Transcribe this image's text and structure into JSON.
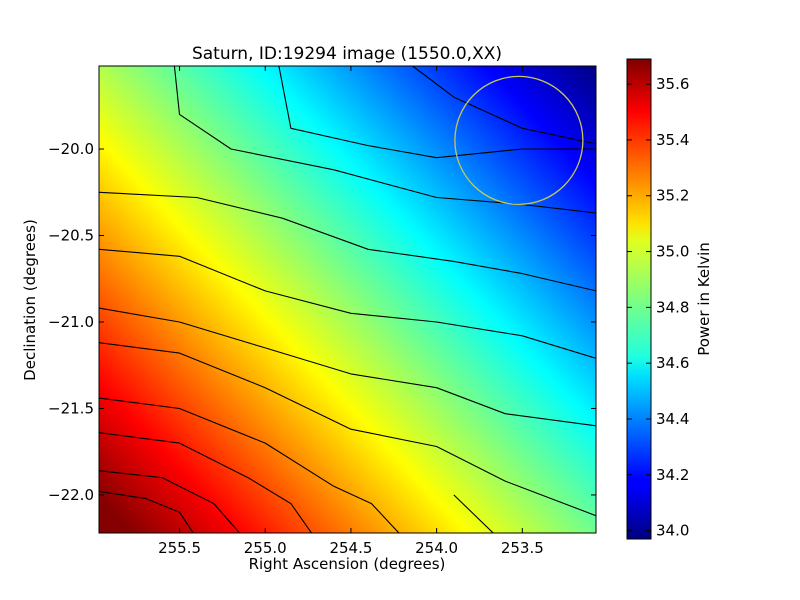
{
  "chart_data": {
    "type": "heatmap",
    "title": "Saturn, ID:19294 image (1550.0,XX)",
    "xlabel": "Right Ascension (degrees)",
    "ylabel": "Declination (degrees)",
    "colorbar_label": "Power in Kelvin",
    "colormap": "jet",
    "xlim": [
      255.97,
      253.07
    ],
    "ylim": [
      -22.22,
      -19.52
    ],
    "x_inverted": true,
    "xticks": [
      255.5,
      255.0,
      254.5,
      254.0,
      253.5
    ],
    "xtick_labels": [
      "255.5",
      "255.0",
      "254.5",
      "254.0",
      "253.5"
    ],
    "yticks": [
      -20.0,
      -20.5,
      -21.0,
      -21.5,
      -22.0
    ],
    "ytick_labels": [
      "−20.0",
      "−20.5",
      "−21.0",
      "−21.5",
      "−22.0"
    ],
    "colorbar_range": [
      33.97,
      35.69
    ],
    "colorbar_ticks": [
      34.0,
      34.2,
      34.4,
      34.6,
      34.8,
      35.0,
      35.2,
      35.4,
      35.6
    ],
    "colorbar_tick_labels": [
      "34.0",
      "34.2",
      "34.4",
      "34.6",
      "34.8",
      "35.0",
      "35.2",
      "35.4",
      "35.6"
    ],
    "grid": false,
    "field_model": {
      "max_value": 35.68,
      "max_ra": 255.85,
      "max_dec": -22.15,
      "min_value": 33.98,
      "min_ra": 253.07,
      "min_dec": -19.52
    },
    "contour_lines": [
      {
        "points": [
          [
            255.53,
            -19.52
          ],
          [
            255.5,
            -19.8
          ],
          [
            255.2,
            -20.0
          ],
          [
            254.6,
            -20.12
          ],
          [
            254.0,
            -20.28
          ],
          [
            253.5,
            -20.32
          ],
          [
            253.07,
            -20.37
          ]
        ]
      },
      {
        "points": [
          [
            254.92,
            -19.52
          ],
          [
            254.85,
            -19.88
          ],
          [
            254.4,
            -19.98
          ],
          [
            254.0,
            -20.05
          ],
          [
            253.5,
            -20.0
          ],
          [
            253.07,
            -20.0
          ]
        ]
      },
      {
        "points": [
          [
            254.14,
            -19.52
          ],
          [
            253.9,
            -19.7
          ],
          [
            253.5,
            -19.88
          ],
          [
            253.07,
            -19.97
          ]
        ]
      },
      {
        "points": [
          [
            255.97,
            -20.25
          ],
          [
            255.4,
            -20.28
          ],
          [
            254.9,
            -20.4
          ],
          [
            254.4,
            -20.58
          ],
          [
            253.9,
            -20.65
          ],
          [
            253.5,
            -20.72
          ],
          [
            253.07,
            -20.82
          ]
        ]
      },
      {
        "points": [
          [
            255.97,
            -20.58
          ],
          [
            255.5,
            -20.62
          ],
          [
            255.0,
            -20.82
          ],
          [
            254.5,
            -20.95
          ],
          [
            254.0,
            -21.0
          ],
          [
            253.5,
            -21.08
          ],
          [
            253.07,
            -21.21
          ]
        ]
      },
      {
        "points": [
          [
            255.97,
            -20.92
          ],
          [
            255.5,
            -21.0
          ],
          [
            255.0,
            -21.15
          ],
          [
            254.5,
            -21.3
          ],
          [
            254.0,
            -21.38
          ],
          [
            253.6,
            -21.53
          ],
          [
            253.07,
            -21.6
          ]
        ]
      },
      {
        "points": [
          [
            255.97,
            -21.12
          ],
          [
            255.5,
            -21.18
          ],
          [
            255.0,
            -21.38
          ],
          [
            254.5,
            -21.62
          ],
          [
            254.0,
            -21.72
          ],
          [
            253.6,
            -21.92
          ],
          [
            253.07,
            -22.12
          ]
        ]
      },
      {
        "points": [
          [
            255.97,
            -21.44
          ],
          [
            255.5,
            -21.5
          ],
          [
            255.0,
            -21.7
          ],
          [
            254.6,
            -21.95
          ],
          [
            254.38,
            -22.05
          ],
          [
            254.22,
            -22.22
          ]
        ]
      },
      {
        "points": [
          [
            255.97,
            -21.64
          ],
          [
            255.5,
            -21.7
          ],
          [
            255.1,
            -21.9
          ],
          [
            254.85,
            -22.05
          ],
          [
            254.73,
            -22.22
          ]
        ]
      },
      {
        "points": [
          [
            255.97,
            -21.86
          ],
          [
            255.6,
            -21.9
          ],
          [
            255.3,
            -22.05
          ],
          [
            255.15,
            -22.22
          ]
        ]
      },
      {
        "points": [
          [
            255.97,
            -21.98
          ],
          [
            255.7,
            -22.02
          ],
          [
            255.5,
            -22.1
          ],
          [
            255.42,
            -22.22
          ]
        ]
      },
      {
        "points": [
          [
            253.67,
            -22.22
          ],
          [
            253.9,
            -22.0
          ]
        ]
      }
    ],
    "annotation_circle": {
      "center_ra": 253.52,
      "center_dec": -19.95,
      "radius_deg": 0.37,
      "color": "#c8c85a"
    }
  }
}
